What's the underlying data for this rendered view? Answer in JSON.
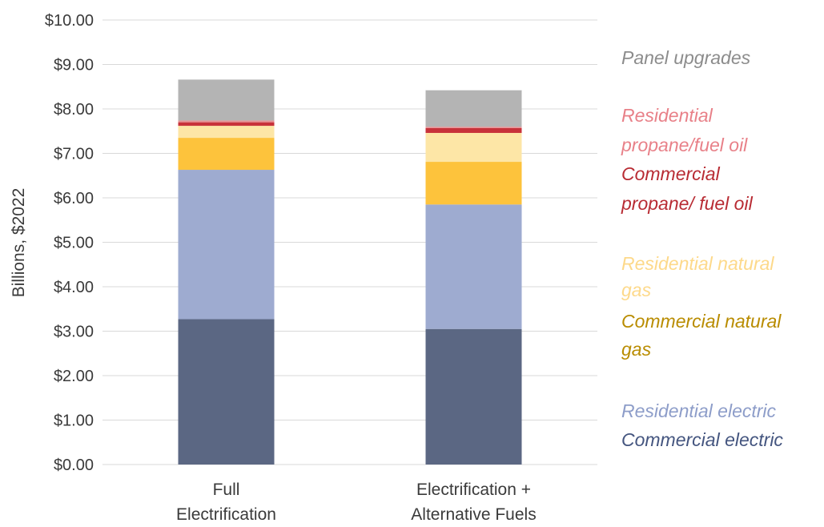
{
  "chart_data": {
    "type": "bar",
    "stacked": true,
    "categories": [
      [
        "Full",
        "Electrification"
      ],
      [
        "Electrification +",
        "Alternative Fuels"
      ]
    ],
    "ylabel": "Billions, $2022",
    "ylim": [
      0,
      10
    ],
    "yticks": [
      "$0.00",
      "$1.00",
      "$2.00",
      "$3.00",
      "$4.00",
      "$5.00",
      "$6.00",
      "$7.00",
      "$8.00",
      "$9.00",
      "$10.00"
    ],
    "grid": true,
    "legend_position": "right",
    "series": [
      {
        "name": "Commercial electric",
        "color": "#5b6783",
        "text_color": "#44557f",
        "values": [
          3.27,
          3.05
        ]
      },
      {
        "name": "Residential electric",
        "color": "#9eabd0",
        "text_color": "#8d9dc9",
        "values": [
          3.36,
          2.8
        ]
      },
      {
        "name": "Commercial natural gas",
        "color": "#fdc33c",
        "text_color": "#b98c00",
        "values": [
          0.72,
          0.96
        ]
      },
      {
        "name": "Residential natural gas",
        "color": "#fde6a6",
        "text_color": "#fdd98a",
        "values": [
          0.27,
          0.65
        ]
      },
      {
        "name": "Commercial propane/ fuel oil",
        "color": "#c8323a",
        "text_color": "#b82b33",
        "values": [
          0.08,
          0.11
        ]
      },
      {
        "name": "Residential propane/fuel oil",
        "color": "#e58f93",
        "text_color": "#e88088",
        "values": [
          0.04,
          0.03
        ]
      },
      {
        "name": "Panel upgrades",
        "color": "#b4b4b4",
        "text_color": "#8c8c8c",
        "values": [
          0.92,
          0.82
        ]
      }
    ],
    "legend": [
      {
        "series": 6,
        "lines": [
          "Panel upgrades"
        ]
      },
      {
        "series": 5,
        "lines": [
          "Residential",
          "propane/fuel oil"
        ]
      },
      {
        "series": 4,
        "lines": [
          "Commercial",
          "propane/ fuel oil"
        ]
      },
      {
        "series": 3,
        "lines": [
          "Residential natural",
          "gas"
        ]
      },
      {
        "series": 2,
        "lines": [
          "Commercial natural",
          "gas"
        ]
      },
      {
        "series": 1,
        "lines": [
          "Residential electric"
        ]
      },
      {
        "series": 0,
        "lines": [
          "Commercial electric"
        ]
      }
    ]
  }
}
